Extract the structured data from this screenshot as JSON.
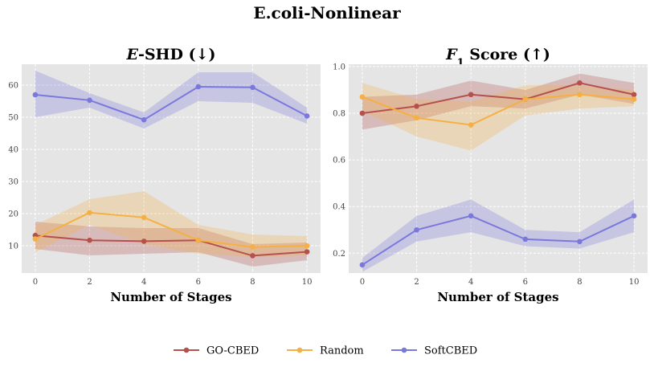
{
  "figure": {
    "suptitle": "E.coli-Nonlinear"
  },
  "chart_data": [
    {
      "type": "line",
      "title_symbol": "E",
      "title_rest": "-SHD (↓)",
      "xlabel": "Number of Stages",
      "ylabel": "",
      "x": [
        0,
        2,
        4,
        6,
        8,
        10
      ],
      "xlim": [
        -0.5,
        10.5
      ],
      "ylim": [
        1.5,
        66.5
      ],
      "xticks": [
        0,
        2,
        4,
        6,
        8,
        10
      ],
      "yticks": [
        10,
        20,
        30,
        40,
        50,
        60
      ],
      "ytick_labels": [
        "10",
        "20",
        "30",
        "40",
        "50",
        "60"
      ],
      "grid": true,
      "series": [
        {
          "name": "GO-CBED",
          "color": "#b5504d",
          "values": [
            13.2,
            11.7,
            11.4,
            11.7,
            6.9,
            8.1
          ],
          "lower": [
            9.0,
            7.0,
            7.5,
            8.0,
            3.5,
            5.5
          ],
          "upper": [
            17.5,
            16.0,
            15.5,
            15.5,
            10.5,
            11.0
          ]
        },
        {
          "name": "Random",
          "color": "#f5b043",
          "values": [
            12.1,
            20.3,
            18.8,
            11.7,
            9.6,
            10.0
          ],
          "lower": [
            8.0,
            16.5,
            10.5,
            7.5,
            6.5,
            7.0
          ],
          "upper": [
            16.5,
            24.5,
            27.0,
            16.5,
            13.5,
            13.0
          ]
        },
        {
          "name": "SoftCBED",
          "color": "#7b78dc",
          "values": [
            57.0,
            55.3,
            49.2,
            59.5,
            59.3,
            50.4
          ],
          "lower": [
            50.0,
            53.0,
            46.5,
            55.0,
            54.5,
            48.0
          ],
          "upper": [
            64.5,
            57.5,
            51.5,
            64.0,
            64.0,
            53.0
          ]
        }
      ]
    },
    {
      "type": "line",
      "title_symbol": "F",
      "title_sub": "1",
      "title_rest": " Score (↑)",
      "xlabel": "Number of Stages",
      "ylabel": "",
      "x": [
        0,
        2,
        4,
        6,
        8,
        10
      ],
      "xlim": [
        -0.5,
        10.5
      ],
      "ylim": [
        0.115,
        1.01
      ],
      "xticks": [
        0,
        2,
        4,
        6,
        8,
        10
      ],
      "yticks": [
        0.2,
        0.4,
        0.6,
        0.8,
        1.0
      ],
      "ytick_labels": [
        "0.2",
        "0.4",
        "0.6",
        "0.8",
        "1.0"
      ],
      "grid": true,
      "series": [
        {
          "name": "GO-CBED",
          "color": "#b5504d",
          "values": [
            0.8,
            0.83,
            0.88,
            0.86,
            0.93,
            0.88
          ],
          "lower": [
            0.73,
            0.77,
            0.83,
            0.82,
            0.88,
            0.84
          ],
          "upper": [
            0.87,
            0.88,
            0.94,
            0.9,
            0.97,
            0.93
          ]
        },
        {
          "name": "Random",
          "color": "#f5b043",
          "values": [
            0.87,
            0.78,
            0.75,
            0.86,
            0.88,
            0.86
          ],
          "lower": [
            0.81,
            0.7,
            0.64,
            0.79,
            0.82,
            0.83
          ],
          "upper": [
            0.93,
            0.86,
            0.85,
            0.92,
            0.92,
            0.9
          ]
        },
        {
          "name": "SoftCBED",
          "color": "#7b78dc",
          "values": [
            0.15,
            0.3,
            0.36,
            0.26,
            0.25,
            0.36
          ],
          "lower": [
            0.12,
            0.25,
            0.29,
            0.23,
            0.22,
            0.29
          ],
          "upper": [
            0.18,
            0.36,
            0.43,
            0.3,
            0.29,
            0.43
          ]
        }
      ]
    }
  ],
  "legend": {
    "position": "bottom-center",
    "items": [
      {
        "label": "GO-CBED",
        "color": "#b5504d"
      },
      {
        "label": "Random",
        "color": "#f5b043"
      },
      {
        "label": "SoftCBED",
        "color": "#7b78dc"
      }
    ]
  }
}
